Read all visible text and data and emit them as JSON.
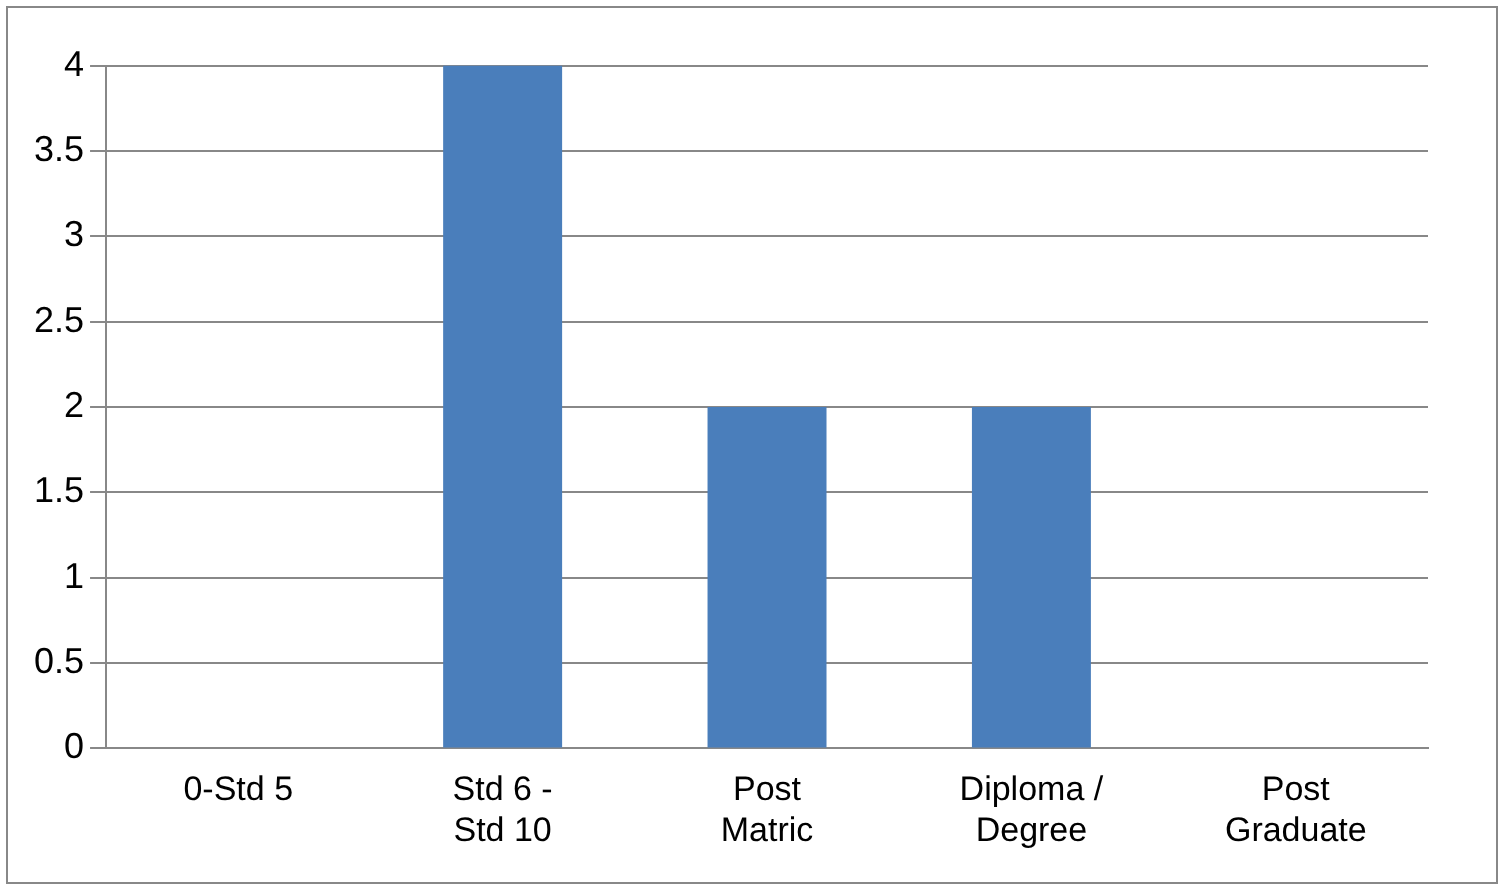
{
  "chart_data": {
    "type": "bar",
    "categories": [
      "0-Std 5",
      "Std 6 -\nStd 10",
      "Post\nMatric",
      "Diploma /\nDegree",
      "Post\nGraduate"
    ],
    "values": [
      0,
      4,
      2,
      2,
      0
    ],
    "color": "#4a7ebb",
    "ylim": [
      0,
      4
    ],
    "yticks": [
      0,
      0.5,
      1,
      1.5,
      2,
      2.5,
      3,
      3.5,
      4
    ],
    "grid": "y"
  }
}
